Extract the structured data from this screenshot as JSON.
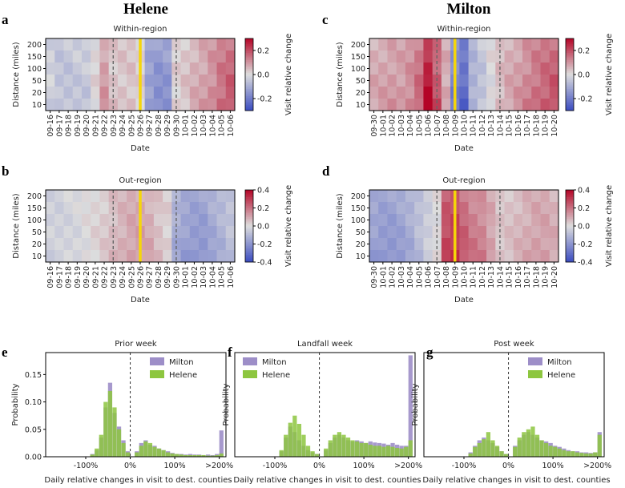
{
  "figure": {
    "column_titles": [
      "Helene",
      "Milton"
    ],
    "panel_letters": [
      "a",
      "b",
      "c",
      "d",
      "e",
      "f",
      "g"
    ]
  },
  "heatmaps": [
    {
      "letter": "a",
      "storm": "Helene",
      "title": "Within-region",
      "xlabel": "Date",
      "ylabel": "Distance (miles)",
      "cbar_label": "Visit relative change",
      "dates": [
        "09-16",
        "09-17",
        "09-18",
        "09-19",
        "09-20",
        "09-21",
        "09-22",
        "09-23",
        "09-24",
        "09-25",
        "09-26",
        "09-27",
        "09-28",
        "09-29",
        "09-30",
        "10-01",
        "10-02",
        "10-03",
        "10-04",
        "10-05",
        "10-06"
      ],
      "distances": [
        "200",
        "150",
        "100",
        "50",
        "20",
        "10"
      ],
      "cbar_ticks": [
        "0.2",
        "0.0",
        "-0.2"
      ],
      "vmin": -0.3,
      "vmax": 0.3,
      "landfall_date": "09-26",
      "dashed_dates": [
        "09-23",
        "09-30"
      ],
      "profile": [
        -0.03,
        -0.06,
        -0.06,
        -0.05,
        -0.05,
        0.01,
        0.1,
        0.04,
        0.04,
        0.04,
        0.02,
        -0.14,
        -0.17,
        -0.16,
        0.02,
        0.04,
        0.07,
        0.09,
        0.12,
        0.16,
        0.19
      ]
    },
    {
      "letter": "b",
      "storm": "Helene",
      "title": "Out-region",
      "xlabel": "Date",
      "ylabel": "Distance (miles)",
      "cbar_label": "Visit relative change",
      "dates": [
        "09-16",
        "09-17",
        "09-18",
        "09-19",
        "09-20",
        "09-21",
        "09-22",
        "09-23",
        "09-24",
        "09-25",
        "09-26",
        "09-27",
        "09-28",
        "09-29",
        "09-30",
        "10-01",
        "10-02",
        "10-03",
        "10-04",
        "10-05",
        "10-06"
      ],
      "distances": [
        "200",
        "150",
        "100",
        "50",
        "20",
        "10"
      ],
      "cbar_ticks": [
        "0.4",
        "0.2",
        "0.0",
        "-0.2",
        "-0.4"
      ],
      "vmin": -0.4,
      "vmax": 0.4,
      "landfall_date": "09-26",
      "dashed_dates": [
        "09-23",
        "09-30"
      ],
      "profile": [
        -0.04,
        -0.04,
        -0.03,
        -0.02,
        0.0,
        0.02,
        0.04,
        0.07,
        0.09,
        0.11,
        0.12,
        0.1,
        0.06,
        0.03,
        -0.15,
        -0.18,
        -0.2,
        -0.2,
        -0.16,
        -0.13,
        -0.09
      ]
    },
    {
      "letter": "c",
      "storm": "Milton",
      "title": "Within-region",
      "xlabel": "Date",
      "ylabel": "Distance (miles)",
      "cbar_label": "Visit relative change",
      "dates": [
        "09-30",
        "10-01",
        "10-02",
        "10-03",
        "10-04",
        "10-05",
        "10-06",
        "10-07",
        "10-08",
        "10-09",
        "10-10",
        "10-11",
        "10-12",
        "10-13",
        "10-14",
        "10-15",
        "10-16",
        "10-17",
        "10-18",
        "10-19",
        "10-20"
      ],
      "distances": [
        "200",
        "150",
        "100",
        "50",
        "20",
        "10"
      ],
      "cbar_ticks": [
        "0.2",
        "0.0",
        "-0.2"
      ],
      "vmin": -0.3,
      "vmax": 0.3,
      "landfall_date": "10-09",
      "dashed_dates": [
        "10-07",
        "10-14"
      ],
      "profile": [
        0.08,
        0.09,
        0.1,
        0.1,
        0.12,
        0.17,
        0.3,
        0.2,
        0.08,
        -0.2,
        -0.25,
        -0.1,
        -0.06,
        0.0,
        0.05,
        0.08,
        0.1,
        0.13,
        0.16,
        0.18,
        0.2
      ]
    },
    {
      "letter": "d",
      "storm": "Milton",
      "title": "Out-region",
      "xlabel": "Date",
      "ylabel": "Distance (miles)",
      "cbar_label": "Visit relative change",
      "dates": [
        "09-30",
        "10-01",
        "10-02",
        "10-03",
        "10-04",
        "10-05",
        "10-06",
        "10-07",
        "10-08",
        "10-09",
        "10-10",
        "10-11",
        "10-12",
        "10-13",
        "10-14",
        "10-15",
        "10-16",
        "10-17",
        "10-18",
        "10-19",
        "10-20"
      ],
      "distances": [
        "200",
        "150",
        "100",
        "50",
        "20",
        "10"
      ],
      "cbar_ticks": [
        "0.4",
        "0.2",
        "0.0",
        "-0.2",
        "-0.4"
      ],
      "vmin": -0.4,
      "vmax": 0.4,
      "landfall_date": "10-09",
      "dashed_dates": [
        "10-07",
        "10-14"
      ],
      "profile": [
        -0.18,
        -0.2,
        -0.2,
        -0.18,
        -0.15,
        -0.1,
        -0.05,
        0.0,
        0.3,
        0.32,
        0.25,
        0.2,
        0.18,
        0.12,
        0.05,
        0.06,
        0.08,
        0.1,
        0.12,
        0.12,
        0.1
      ]
    }
  ],
  "histograms": [
    {
      "letter": "e",
      "title": "Prior week",
      "xlabel": "Daily relative changes in visit to dest. counties",
      "ylabel": "Probability",
      "yticks": [
        "0.15",
        "0.10",
        "0.05",
        "0.00"
      ],
      "ymax": 0.19,
      "xticks": [
        "-100%",
        "0%",
        "100%",
        ">200%"
      ],
      "legend": [
        "Milton",
        "Helene"
      ],
      "bins": [
        -100,
        -90,
        -80,
        -70,
        -60,
        -50,
        -40,
        -30,
        -20,
        -10,
        0,
        10,
        20,
        30,
        40,
        50,
        60,
        70,
        80,
        90,
        100,
        110,
        120,
        130,
        140,
        150,
        160,
        170,
        180,
        190,
        200
      ],
      "series": [
        {
          "name": "Milton",
          "color": "#9d8ec8",
          "values": [
            0.0,
            0.005,
            0.012,
            0.035,
            0.09,
            0.135,
            0.08,
            0.055,
            0.03,
            0.01,
            0.0,
            0.01,
            0.025,
            0.03,
            0.022,
            0.02,
            0.015,
            0.012,
            0.01,
            0.007,
            0.005,
            0.005,
            0.004,
            0.005,
            0.004,
            0.004,
            0.003,
            0.004,
            0.003,
            0.005,
            0.048
          ]
        },
        {
          "name": "Helene",
          "color": "#8dc63f",
          "values": [
            0.0,
            0.004,
            0.015,
            0.04,
            0.1,
            0.12,
            0.09,
            0.05,
            0.025,
            0.008,
            0.0,
            0.008,
            0.02,
            0.028,
            0.025,
            0.018,
            0.015,
            0.012,
            0.008,
            0.006,
            0.005,
            0.004,
            0.003,
            0.003,
            0.003,
            0.003,
            0.003,
            0.002,
            0.002,
            0.003,
            0.006
          ]
        }
      ]
    },
    {
      "letter": "f",
      "title": "Landfall week",
      "xlabel": "Daily relative changes in visit to dest. counties",
      "ylabel": "Probability",
      "yticks": [],
      "ymax": 0.19,
      "xticks": [
        "-100%",
        "0%",
        "100%",
        ">200%"
      ],
      "legend": [
        "Milton",
        "Helene"
      ],
      "bins": [
        -100,
        -90,
        -80,
        -70,
        -60,
        -50,
        -40,
        -30,
        -20,
        -10,
        0,
        10,
        20,
        30,
        40,
        50,
        60,
        70,
        80,
        90,
        100,
        110,
        120,
        130,
        140,
        150,
        160,
        170,
        180,
        190,
        200
      ],
      "series": [
        {
          "name": "Milton",
          "color": "#9d8ec8",
          "values": [
            0.0,
            0.01,
            0.035,
            0.055,
            0.045,
            0.03,
            0.02,
            0.012,
            0.008,
            0.005,
            0.0,
            0.012,
            0.025,
            0.035,
            0.04,
            0.035,
            0.03,
            0.028,
            0.03,
            0.028,
            0.025,
            0.028,
            0.026,
            0.025,
            0.024,
            0.022,
            0.025,
            0.022,
            0.02,
            0.02,
            0.185
          ]
        },
        {
          "name": "Helene",
          "color": "#8dc63f",
          "values": [
            0.0,
            0.012,
            0.04,
            0.062,
            0.075,
            0.06,
            0.04,
            0.02,
            0.01,
            0.005,
            0.0,
            0.015,
            0.03,
            0.04,
            0.045,
            0.04,
            0.035,
            0.03,
            0.028,
            0.025,
            0.025,
            0.022,
            0.02,
            0.02,
            0.018,
            0.02,
            0.018,
            0.016,
            0.015,
            0.018,
            0.03
          ]
        }
      ]
    },
    {
      "letter": "g",
      "title": "Post week",
      "xlabel": "Daily relative changes in visit to dest. counties",
      "ylabel": "Probability",
      "yticks": [],
      "ymax": 0.19,
      "xticks": [
        "-100%",
        "0%",
        "100%",
        ">200%"
      ],
      "legend": [
        "Milton",
        "Helene"
      ],
      "bins": [
        -100,
        -90,
        -80,
        -70,
        -60,
        -50,
        -40,
        -30,
        -20,
        -10,
        0,
        10,
        20,
        30,
        40,
        50,
        60,
        70,
        80,
        90,
        100,
        110,
        120,
        130,
        140,
        150,
        160,
        170,
        180,
        190,
        200
      ],
      "series": [
        {
          "name": "Milton",
          "color": "#9d8ec8",
          "values": [
            0.0,
            0.008,
            0.02,
            0.03,
            0.035,
            0.03,
            0.025,
            0.018,
            0.01,
            0.005,
            0.0,
            0.02,
            0.03,
            0.04,
            0.045,
            0.04,
            0.035,
            0.03,
            0.028,
            0.025,
            0.02,
            0.018,
            0.015,
            0.012,
            0.01,
            0.01,
            0.008,
            0.008,
            0.007,
            0.008,
            0.045
          ]
        },
        {
          "name": "Helene",
          "color": "#8dc63f",
          "values": [
            0.0,
            0.006,
            0.018,
            0.025,
            0.032,
            0.045,
            0.03,
            0.02,
            0.01,
            0.005,
            0.0,
            0.018,
            0.035,
            0.045,
            0.05,
            0.055,
            0.04,
            0.03,
            0.025,
            0.02,
            0.018,
            0.015,
            0.012,
            0.01,
            0.01,
            0.008,
            0.007,
            0.006,
            0.006,
            0.008,
            0.04
          ]
        }
      ]
    }
  ],
  "colors": {
    "landfall_line": "#f5d60a",
    "cmap_neg": "#3b4cc0",
    "cmap_mid": "#dddddd",
    "cmap_pos": "#b40426"
  }
}
